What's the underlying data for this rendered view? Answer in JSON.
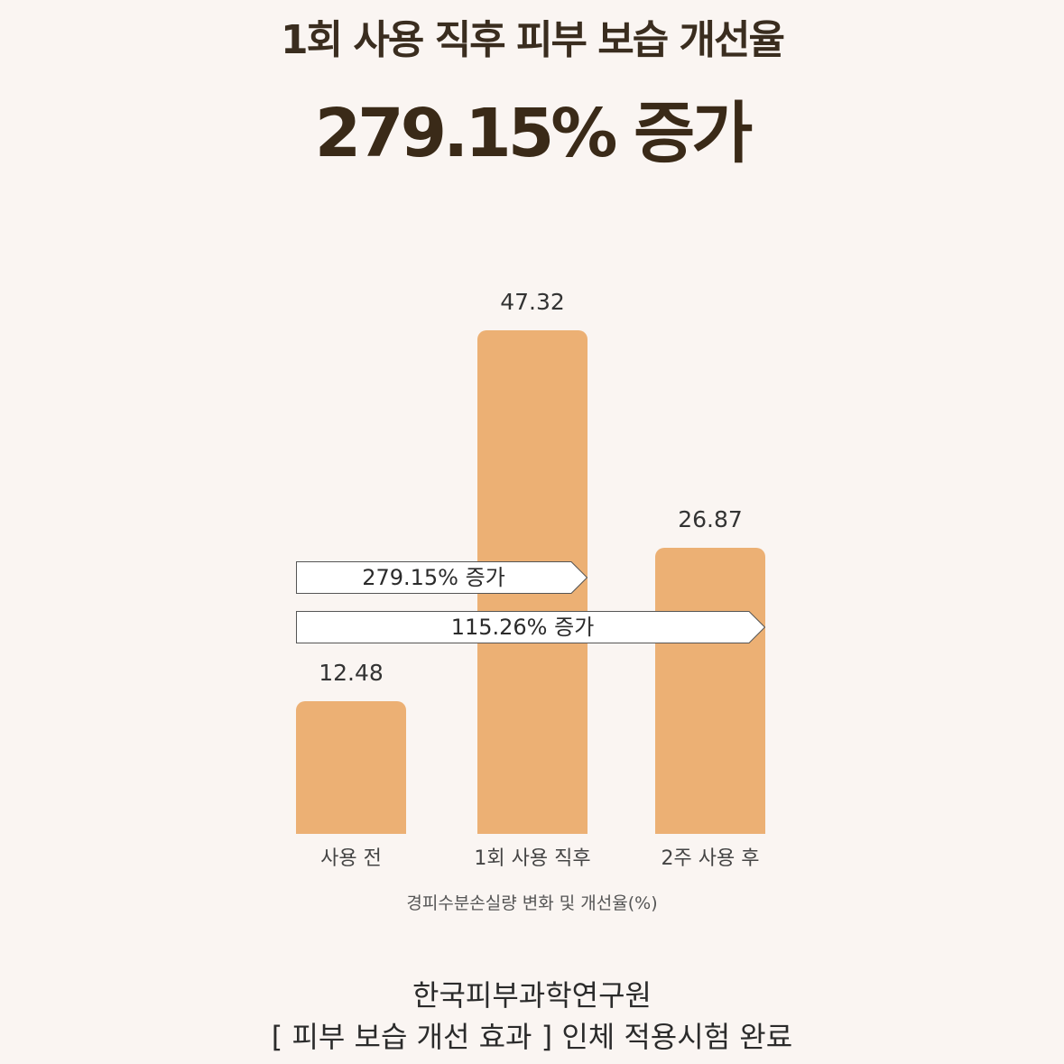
{
  "header": {
    "title": "1회 사용 직후 피부 보습 개선율",
    "headline": "279.15% 증가"
  },
  "chart_data": {
    "type": "bar",
    "categories": [
      "사용 전",
      "1회 사용 직후",
      "2주 사용 후"
    ],
    "values": [
      12.48,
      47.32,
      26.87
    ],
    "value_labels": [
      "12.48",
      "47.32",
      "26.87"
    ],
    "xlabel": "경피수분손실량 변화 및 개선율(%)",
    "ylabel": "",
    "ylim": [
      0,
      47.32
    ],
    "grid": false,
    "bar_color": "#ecb074",
    "annotations": [
      {
        "text": "279.15% 증가",
        "from": "사용 전",
        "to": "1회 사용 직후"
      },
      {
        "text": "115.26% 증가",
        "from": "사용 전",
        "to": "2주 사용 후"
      }
    ]
  },
  "footer": {
    "institute": "한국피부과학연구원",
    "test_note": "[ 피부 보습 개선 효과 ] 인체 적용시험 완료"
  }
}
